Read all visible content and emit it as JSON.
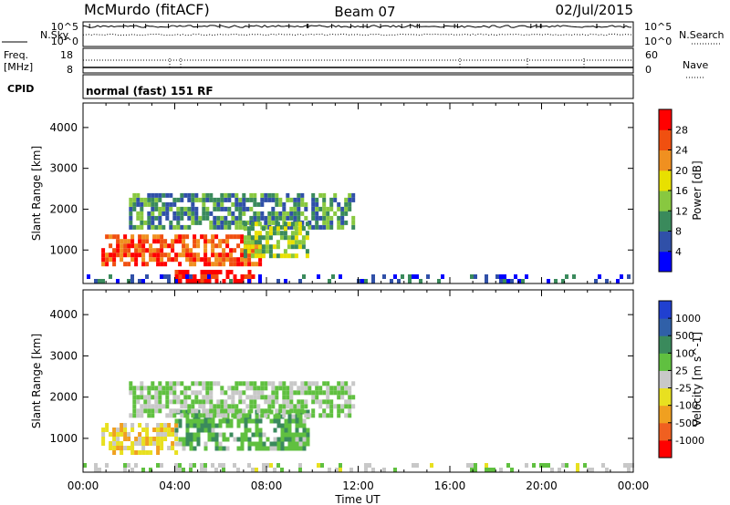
{
  "header": {
    "station": "McMurdo (fitACF)",
    "beam": "Beam 07",
    "date": "02/Jul/2015"
  },
  "noise_panel": {
    "left_label": "N.Sky",
    "right_label": "N.Search",
    "left_ticks": [
      "10^5",
      "10^0"
    ],
    "right_ticks": [
      "10^5",
      "10^0"
    ]
  },
  "freq_panel": {
    "left_label_line1": "Freq.",
    "left_label_line2": "[MHz]",
    "right_label": "Nave",
    "left_ticks": [
      "18",
      "8"
    ],
    "right_ticks": [
      "60",
      "0"
    ]
  },
  "cpid": {
    "label": "CPID",
    "value": "normal (fast) 151 RF"
  },
  "colors": {
    "power": [
      "#0000ff",
      "#3050a8",
      "#3a8a5c",
      "#88c840",
      "#e8e000",
      "#f09020",
      "#f05010",
      "#ff0000"
    ],
    "velocity": [
      "#ff0000",
      "#f06020",
      "#f0a020",
      "#e8e020",
      "#c8c8c8",
      "#60c040",
      "#3a8a5c",
      "#3060a8",
      "#2040d0"
    ]
  },
  "chart_data": [
    {
      "type": "heatmap",
      "title": "",
      "xlabel": "",
      "ylabel": "Slant Range [km]",
      "x_ticks": [
        "00:00",
        "04:00",
        "08:00",
        "12:00",
        "16:00",
        "20:00",
        "00:00"
      ],
      "y_ticks": [
        1000,
        2000,
        3000,
        4000
      ],
      "xlim_hours": [
        0,
        24
      ],
      "ylim_km": [
        180,
        4600
      ],
      "colorbar": {
        "label": "Power [dB]",
        "ticks": [
          "4",
          "8",
          "12",
          "16",
          "20",
          "24",
          "28"
        ],
        "range": [
          0,
          32
        ]
      },
      "regions": [
        {
          "t0": 0.8,
          "t1": 7.7,
          "r0": 600,
          "r1": 1300,
          "value": 26
        },
        {
          "t0": 4.0,
          "t1": 7.5,
          "r0": 180,
          "r1": 500,
          "value": 30
        },
        {
          "t0": 2.0,
          "t1": 11.8,
          "r0": 1500,
          "r1": 2300,
          "value": 10
        },
        {
          "t0": 7.0,
          "t1": 9.8,
          "r0": 800,
          "r1": 1600,
          "value": 14
        },
        {
          "t0": 0.0,
          "t1": 24.0,
          "r0": 180,
          "r1": 300,
          "value": 6
        }
      ]
    },
    {
      "type": "heatmap",
      "title": "",
      "xlabel": "Time UT",
      "ylabel": "Slant Range [km]",
      "x_ticks": [
        "00:00",
        "04:00",
        "08:00",
        "12:00",
        "16:00",
        "20:00",
        "00:00"
      ],
      "y_ticks": [
        1000,
        2000,
        3000,
        4000
      ],
      "xlim_hours": [
        0,
        24
      ],
      "ylim_km": [
        180,
        4600
      ],
      "colorbar": {
        "label": "Velocity [m s^-1]",
        "ticks": [
          "-1000",
          "-500",
          "-100",
          "-25",
          "25",
          "100",
          "500",
          "1000"
        ],
        "range": [
          -1200,
          1200
        ]
      },
      "regions": [
        {
          "t0": 0.8,
          "t1": 4.0,
          "r0": 600,
          "r1": 1300,
          "value": -300
        },
        {
          "t0": 4.0,
          "t1": 9.8,
          "r0": 700,
          "r1": 1600,
          "value": 300
        },
        {
          "t0": 2.0,
          "t1": 11.8,
          "r0": 1500,
          "r1": 2300,
          "value": 150
        },
        {
          "t0": 0.0,
          "t1": 24.0,
          "r0": 180,
          "r1": 300,
          "value": 60
        }
      ]
    }
  ]
}
